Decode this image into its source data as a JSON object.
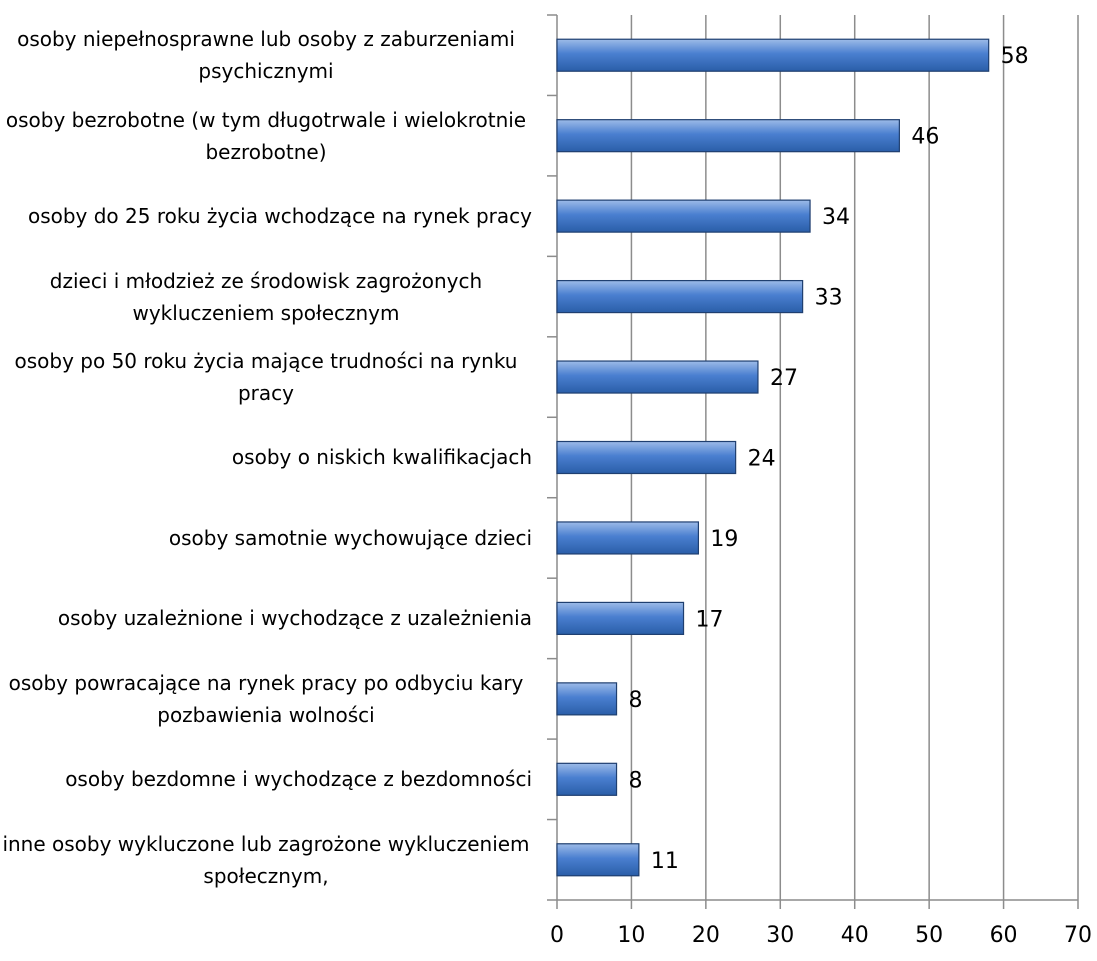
{
  "chart_data": {
    "type": "bar",
    "orientation": "horizontal",
    "categories": [
      "osoby niepełnosprawne lub osoby z zaburzeniami psychicznymi",
      "osoby bezrobotne (w tym długotrwale i wielokrotnie bezrobotne)",
      "osoby do 25 roku życia wchodzące na rynek pracy",
      "dzieci i młodzież ze środowisk zagrożonych wykluczeniem społecznym",
      "osoby po 50 roku życia mające trudności na rynku pracy",
      "osoby o niskich kwalifikacjach",
      "osoby samotnie wychowujące dzieci",
      "osoby uzależnione i wychodzące z uzależnienia",
      "osoby powracające na rynek pracy po odbyciu kary pozbawienia wolności",
      "osoby bezdomne i wychodzące z bezdomności",
      "inne osoby wykluczone lub zagrożone wykluczeniem społecznym,"
    ],
    "values": [
      58,
      46,
      34,
      33,
      27,
      24,
      19,
      17,
      8,
      8,
      11
    ],
    "color": "#4a7fd0",
    "xlim": [
      0,
      70
    ],
    "xticks": [
      0,
      10,
      20,
      30,
      40,
      50,
      60,
      70
    ],
    "grid": true
  }
}
